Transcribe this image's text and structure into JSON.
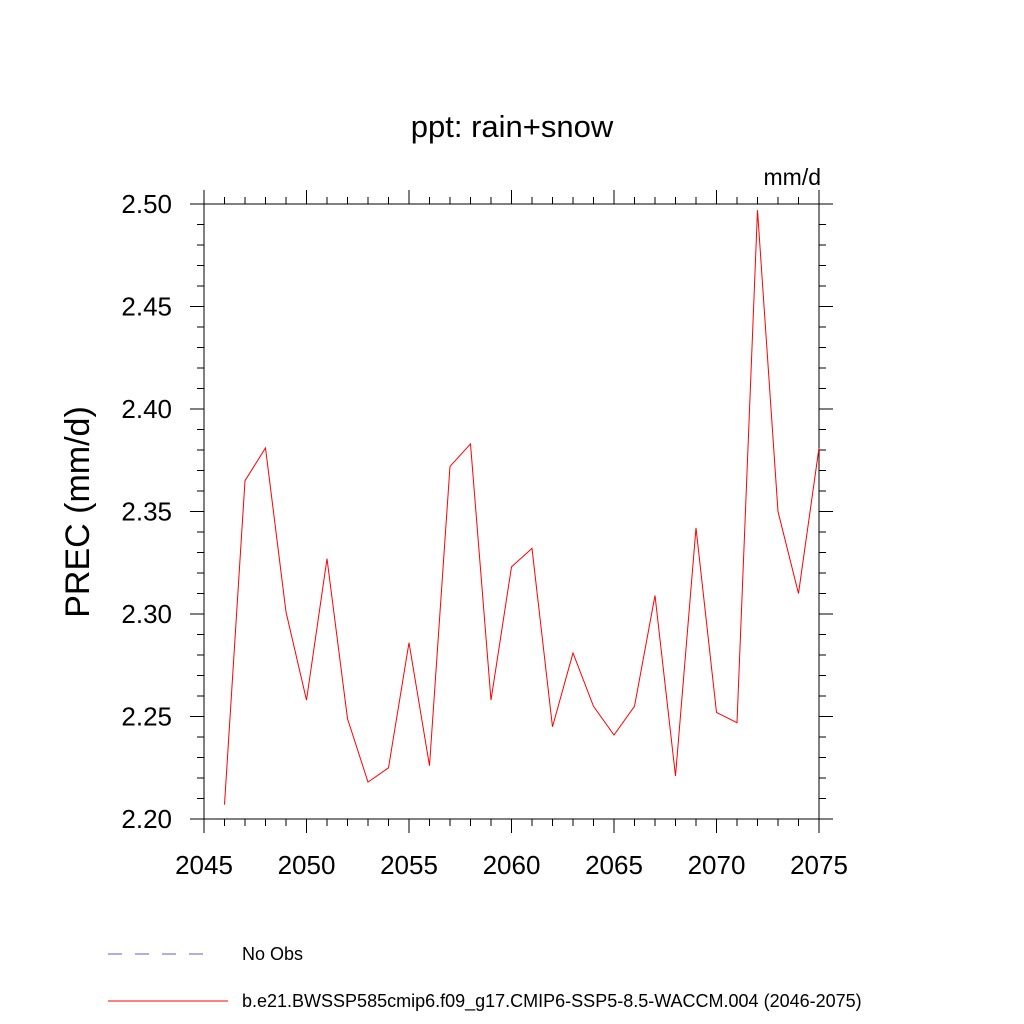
{
  "chart_data": {
    "type": "line",
    "title": "ppt: rain+snow",
    "units_label": "mm/d",
    "ylabel": "PREC  (mm/d)",
    "xlabel": "",
    "xlim": [
      2045,
      2075
    ],
    "ylim": [
      2.2,
      2.5
    ],
    "xticks": [
      2045,
      2050,
      2055,
      2060,
      2065,
      2070,
      2075
    ],
    "yticks": [
      "2.20",
      "2.25",
      "2.30",
      "2.35",
      "2.40",
      "2.45",
      "2.50"
    ],
    "grid": false,
    "legend_position": "bottom",
    "series": [
      {
        "name": "b.e21.BWSSP585cmip6.f09_g17.CMIP6-SSP5-8.5-WACCM.004 (2046-2075)",
        "color": "#ff0000",
        "style": "solid",
        "x": [
          2046,
          2047,
          2048,
          2049,
          2050,
          2051,
          2052,
          2053,
          2054,
          2055,
          2056,
          2057,
          2058,
          2059,
          2060,
          2061,
          2062,
          2063,
          2064,
          2065,
          2066,
          2067,
          2068,
          2069,
          2070,
          2071,
          2072,
          2073,
          2074,
          2075
        ],
        "y": [
          2.207,
          2.365,
          2.381,
          2.301,
          2.258,
          2.327,
          2.249,
          2.218,
          2.225,
          2.286,
          2.226,
          2.372,
          2.383,
          2.258,
          2.323,
          2.332,
          2.245,
          2.281,
          2.255,
          2.241,
          2.255,
          2.309,
          2.221,
          2.342,
          2.252,
          2.247,
          2.497,
          2.35,
          2.31,
          2.381
        ]
      }
    ],
    "legend": [
      {
        "label": "No Obs",
        "color": "#6a5acd",
        "style": "dashed"
      },
      {
        "label": "b.e21.BWSSP585cmip6.f09_g17.CMIP6-SSP5-8.5-WACCM.004 (2046-2075)",
        "color": "#ff0000",
        "style": "solid"
      }
    ]
  }
}
